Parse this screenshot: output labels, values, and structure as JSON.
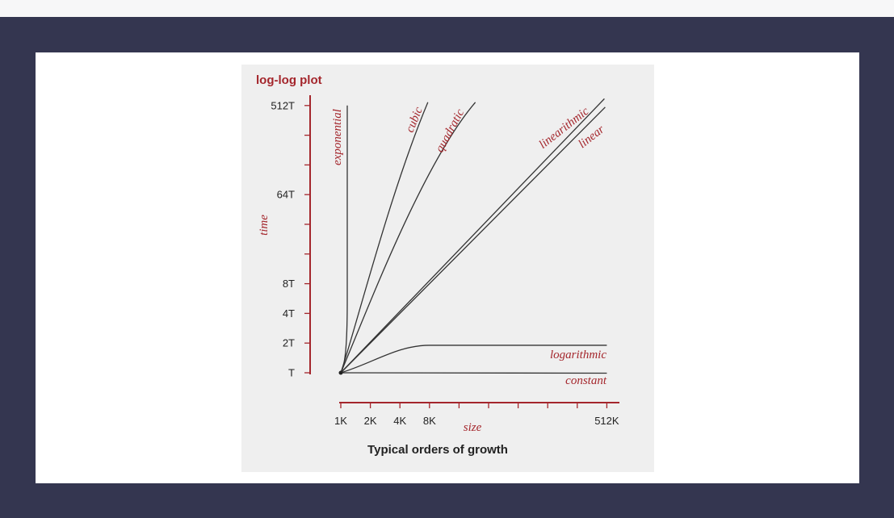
{
  "chart_data": {
    "type": "line",
    "title": "log-log plot",
    "caption": "Typical orders of growth",
    "xlabel": "size",
    "ylabel": "time",
    "x_scale": "log2",
    "y_scale": "log2",
    "x_tick_labels": [
      "1K",
      "2K",
      "4K",
      "8K",
      "",
      "",
      "",
      "",
      "",
      "512K"
    ],
    "y_tick_labels": [
      "T",
      "2T",
      "4T",
      "8T",
      "",
      "",
      "64T",
      "",
      "",
      "512T"
    ],
    "series": [
      {
        "name": "constant",
        "x": [
          1,
          512
        ],
        "y": [
          1,
          1
        ]
      },
      {
        "name": "logarithmic",
        "x": [
          1,
          2,
          4,
          8,
          512
        ],
        "y": [
          1,
          1.1,
          1.2,
          1.3,
          1.9
        ]
      },
      {
        "name": "linear",
        "x": [
          1,
          512
        ],
        "y": [
          1,
          512
        ]
      },
      {
        "name": "linearithmic",
        "x": [
          1,
          512
        ],
        "y": [
          1,
          600
        ]
      },
      {
        "name": "quadratic",
        "x": [
          1,
          22.6
        ],
        "y": [
          1,
          512
        ]
      },
      {
        "name": "cubic",
        "x": [
          1,
          8
        ],
        "y": [
          1,
          512
        ]
      },
      {
        "name": "exponential",
        "x": [
          1,
          1.05
        ],
        "y": [
          1,
          512
        ]
      }
    ]
  },
  "colors": {
    "accent": "#a4262c",
    "curve": "#333333",
    "figure_bg": "#efefef",
    "frame": "#343650"
  }
}
